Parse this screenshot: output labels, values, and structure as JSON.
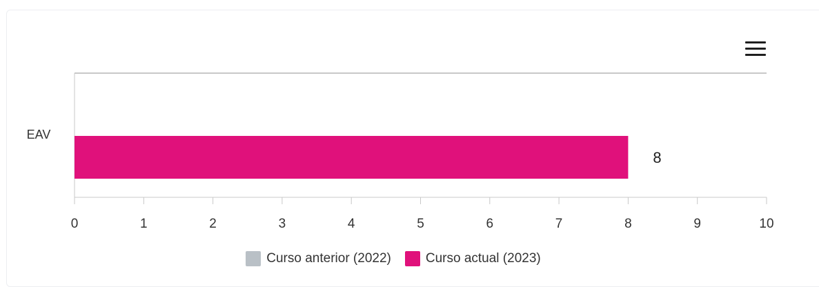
{
  "colors": {
    "previous": "#b9c0c6",
    "current": "#e0117b",
    "axis": "#c8c8c8",
    "text": "#333333"
  },
  "chart_data": {
    "type": "bar",
    "orientation": "horizontal",
    "categories": [
      "EAV"
    ],
    "series": [
      {
        "name": "Curso anterior (2022)",
        "values": [
          null
        ]
      },
      {
        "name": "Curso actual (2023)",
        "values": [
          8
        ]
      }
    ],
    "data_labels": [
      "8"
    ],
    "xlim": [
      0,
      10
    ],
    "xticks": [
      "0",
      "1",
      "2",
      "3",
      "4",
      "5",
      "6",
      "7",
      "8",
      "9",
      "10"
    ],
    "legend": "bottom-center",
    "grid": false
  }
}
